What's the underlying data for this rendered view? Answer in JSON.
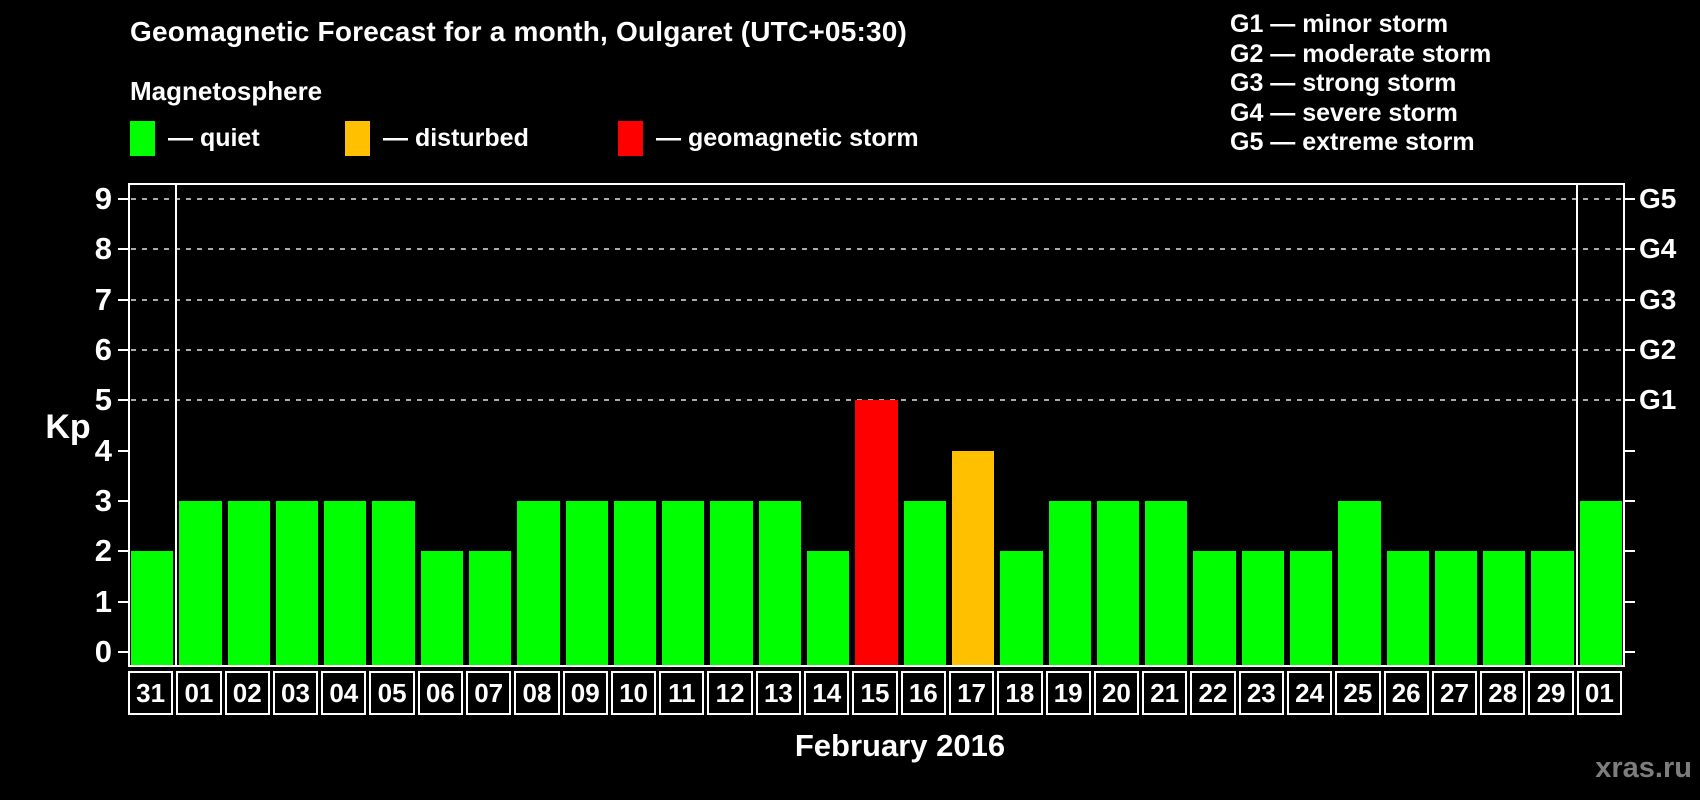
{
  "header": {
    "title": "Geomagnetic Forecast for a month, Oulgaret (UTC+05:30)",
    "subtitle": "Magnetosphere"
  },
  "legend": {
    "items": [
      {
        "label": "— quiet",
        "status": "quiet"
      },
      {
        "label": "— disturbed",
        "status": "disturbed"
      },
      {
        "label": "— geomagnetic storm",
        "status": "storm"
      }
    ]
  },
  "g_legend": [
    "G1 — minor storm",
    "G2 — moderate storm",
    "G3 — strong storm",
    "G4 — severe storm",
    "G5 — extreme storm"
  ],
  "colors": {
    "quiet": "#00ff00",
    "disturbed": "#ffc000",
    "storm": "#ff0000",
    "axis": "#ffffff",
    "grid": "#aaaaaa",
    "background": "#000000",
    "watermark": "#7d7d7d"
  },
  "chart_data": {
    "type": "bar",
    "title": "Geomagnetic Forecast for a month, Oulgaret (UTC+05:30)",
    "xlabel": "February 2016",
    "ylabel": "Kp",
    "ylim": [
      0,
      9
    ],
    "yticks": [
      0,
      1,
      2,
      3,
      4,
      5,
      6,
      7,
      8,
      9
    ],
    "gridlines_at": [
      5,
      6,
      7,
      8,
      9
    ],
    "right_ticks": [
      {
        "value": 5,
        "label": "G1"
      },
      {
        "value": 6,
        "label": "G2"
      },
      {
        "value": 7,
        "label": "G3"
      },
      {
        "value": 8,
        "label": "G4"
      },
      {
        "value": 9,
        "label": "G5"
      }
    ],
    "categories": [
      "31",
      "01",
      "02",
      "03",
      "04",
      "05",
      "06",
      "07",
      "08",
      "09",
      "10",
      "11",
      "12",
      "13",
      "14",
      "15",
      "16",
      "17",
      "18",
      "19",
      "20",
      "21",
      "22",
      "23",
      "24",
      "25",
      "26",
      "27",
      "28",
      "29",
      "01"
    ],
    "values": [
      2,
      3,
      3,
      3,
      3,
      3,
      2,
      2,
      3,
      3,
      3,
      3,
      3,
      3,
      2,
      5,
      3,
      4,
      2,
      3,
      3,
      3,
      2,
      2,
      2,
      3,
      2,
      2,
      2,
      2,
      3
    ],
    "statuses": [
      "quiet",
      "quiet",
      "quiet",
      "quiet",
      "quiet",
      "quiet",
      "quiet",
      "quiet",
      "quiet",
      "quiet",
      "quiet",
      "quiet",
      "quiet",
      "quiet",
      "quiet",
      "storm",
      "quiet",
      "disturbed",
      "quiet",
      "quiet",
      "quiet",
      "quiet",
      "quiet",
      "quiet",
      "quiet",
      "quiet",
      "quiet",
      "quiet",
      "quiet",
      "quiet",
      "quiet"
    ],
    "separator_boundaries": [
      1,
      30
    ],
    "legend_position": "top",
    "grid": "dashed horizontal at Kp 5-9"
  },
  "footer": {
    "month_label": "February 2016",
    "watermark": "xras.ru"
  }
}
